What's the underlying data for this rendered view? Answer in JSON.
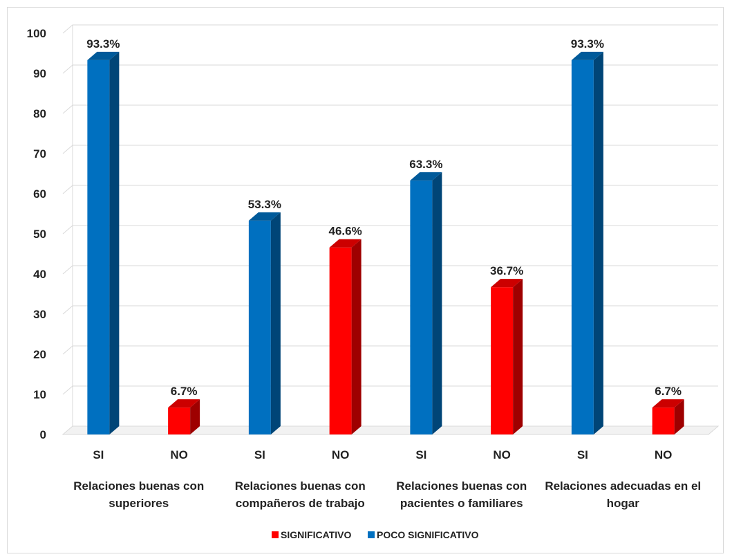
{
  "chart_data": {
    "type": "bar",
    "ylim": [
      0,
      100
    ],
    "yticks": [
      0,
      10,
      20,
      30,
      40,
      50,
      60,
      70,
      80,
      90,
      100
    ],
    "grid": true,
    "three_d": true,
    "legend_position": "bottom",
    "groups": [
      "Relaciones buenas con superiores",
      "Relaciones buenas con compañeros de trabajo",
      "Relaciones buenas con pacientes o familiares",
      "Relaciones adecuadas en el hogar"
    ],
    "group_label_lines": [
      [
        "Relaciones buenas con",
        "superiores"
      ],
      [
        "Relaciones buenas con",
        "compañeros de trabajo"
      ],
      [
        "Relaciones buenas con",
        "pacientes o familiares"
      ],
      [
        "Relaciones adecuadas en el",
        "hogar"
      ]
    ],
    "categories": [
      "SI",
      "NO",
      "SI",
      "NO",
      "SI",
      "NO",
      "SI",
      "NO"
    ],
    "series": [
      {
        "name": "SIGNIFICATIVO",
        "color": "#ff0000",
        "values": [
          null,
          6.7,
          null,
          46.6,
          null,
          36.7,
          null,
          6.7
        ],
        "labels": [
          "",
          "6.7%",
          "",
          "46.6%",
          "",
          "36.7%",
          "",
          "6.7%"
        ]
      },
      {
        "name": "POCO SIGNIFICATIVO",
        "color": "#0070c0",
        "values": [
          93.3,
          null,
          53.3,
          null,
          63.3,
          null,
          93.3,
          null
        ],
        "labels": [
          "93.3%",
          "",
          "53.3%",
          "",
          "63.3%",
          "",
          "93.3%",
          ""
        ]
      }
    ]
  }
}
